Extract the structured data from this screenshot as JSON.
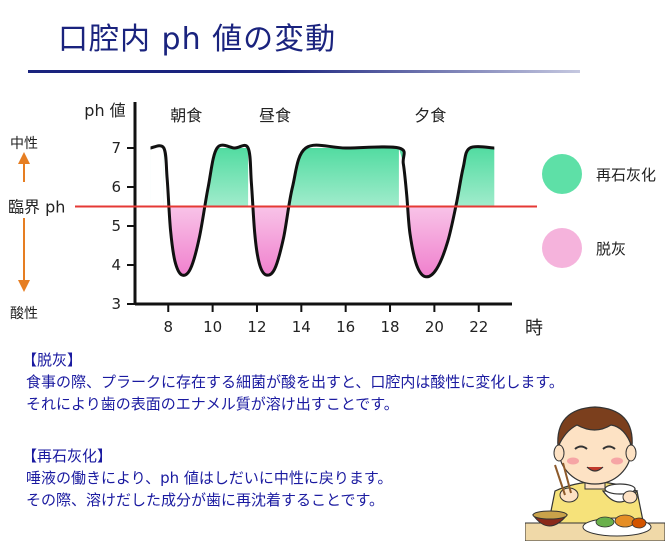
{
  "title": "口腔内 ph 値の変動",
  "chart_data": {
    "type": "area",
    "ylabel": "ph 値",
    "xlabel": "時",
    "xlim": [
      6.5,
      23.5
    ],
    "ylim": [
      3,
      7.5
    ],
    "xticks": [
      8,
      10,
      12,
      14,
      16,
      18,
      20,
      22
    ],
    "yticks": [
      3,
      4,
      5,
      6,
      7
    ],
    "critical_ph": {
      "label": "臨界 ph",
      "value": 5.5,
      "color": "#e53935"
    },
    "meals": [
      {
        "label": "朝食",
        "x": 8
      },
      {
        "label": "昼食",
        "x": 12
      },
      {
        "label": "夕食",
        "x": 19
      }
    ],
    "series": [
      {
        "x": [
          7.2,
          7.8,
          7.95,
          8.1,
          8.3,
          8.6,
          9.0,
          9.4,
          9.8,
          10.2,
          11.0,
          11.6,
          11.75,
          11.9,
          12.1,
          12.4,
          12.8,
          13.2,
          13.6,
          14.2,
          16.0,
          18.4,
          18.6,
          18.75,
          18.9,
          19.2,
          19.6,
          20.1,
          20.6,
          21.0,
          21.3,
          21.6,
          22.7
        ],
        "y": [
          7.0,
          7.0,
          6.2,
          4.9,
          4.1,
          3.75,
          3.9,
          4.7,
          6.0,
          7.0,
          7.0,
          7.0,
          6.1,
          4.8,
          4.05,
          3.75,
          3.9,
          4.7,
          6.0,
          7.0,
          7.0,
          7.0,
          6.6,
          5.8,
          4.8,
          4.0,
          3.7,
          3.9,
          4.6,
          5.6,
          6.5,
          7.0,
          7.0
        ]
      }
    ],
    "legend": [
      {
        "label": "再石灰化",
        "color": "#5ee0a7"
      },
      {
        "label": "脱灰",
        "color": "#f5b3dc"
      }
    ],
    "side_labels": {
      "neutral": "中性",
      "acidic": "酸性"
    },
    "arrow_color": "#e67e22"
  },
  "descriptions": {
    "demineralization": {
      "heading": "【脱灰】",
      "lines": [
        "食事の際、プラークに存在する細菌が酸を出すと、口腔内は酸性に変化します。",
        "それにより歯の表面のエナメル質が溶け出すことです。"
      ]
    },
    "remineralization": {
      "heading": "【再石灰化】",
      "lines": [
        "唾液の働きにより、ph 値はしだいに中性に戻ります。",
        "その際、溶けだした成分が歯に再沈着することです。"
      ]
    }
  }
}
